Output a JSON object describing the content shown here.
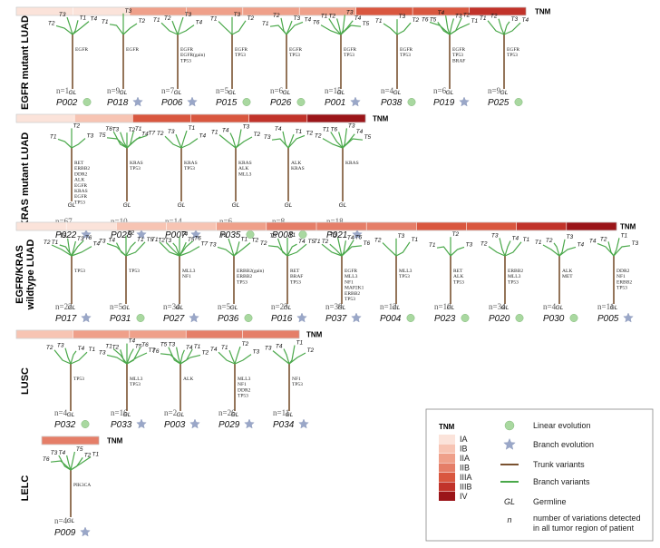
{
  "colors": {
    "stages": [
      "#fbe3da",
      "#f7c4b3",
      "#efa08a",
      "#e57e68",
      "#d9573f",
      "#c1332a",
      "#9b1519"
    ],
    "trunk": "#7a5230",
    "branch": "#4aa84a",
    "linear_fill": "#a9d8a0",
    "star_fill": "#9aa7c8"
  },
  "tnm_label": "TNM",
  "groups": [
    {
      "label": "EGFR mutant LUAD",
      "tnm_stages": [
        0,
        0,
        2,
        2,
        2,
        2,
        4,
        4,
        5
      ]
    },
    {
      "label": "KRAS mutant LUAD",
      "tnm_stages": [
        0,
        1,
        4,
        4,
        5,
        6
      ]
    },
    {
      "label": "EGFR/KRAS wildtype LUAD",
      "tnm_stages": [
        0,
        0,
        1,
        1,
        2,
        3,
        3,
        3,
        4,
        4,
        5,
        6
      ]
    },
    {
      "label": "LUSC",
      "tnm_stages": [
        1,
        2,
        2,
        3,
        3
      ]
    },
    {
      "label": "LELC",
      "tnm_stages": [
        3
      ]
    }
  ],
  "patients": [
    {
      "id": "P002",
      "n": "n=1",
      "evo": "linear",
      "genes": [
        "EGFR"
      ],
      "tips": [
        "T2",
        "T3",
        "T1",
        "T4"
      ]
    },
    {
      "id": "P018",
      "n": "n=9",
      "evo": "branch",
      "genes": [
        "EGFR"
      ],
      "tips": [
        "T1",
        "T3",
        "T2"
      ]
    },
    {
      "id": "P006",
      "n": "n=7",
      "evo": "branch",
      "genes": [
        "EGFR",
        "EGFR(gain)",
        "TP53"
      ],
      "tips": [
        "T1",
        "T2",
        "T3",
        "T4"
      ]
    },
    {
      "id": "P015",
      "n": "n=5",
      "evo": "linear",
      "genes": [
        "EGFR",
        "TP53"
      ],
      "tips": [
        "T1",
        "T3",
        "T2"
      ]
    },
    {
      "id": "P026",
      "n": "n=6",
      "evo": "linear",
      "genes": [
        "EGFR",
        "TP53"
      ],
      "tips": [
        "T1",
        "T2",
        "T3",
        "T4"
      ]
    },
    {
      "id": "P001",
      "n": "n=15",
      "evo": "branch",
      "genes": [
        "EGFR",
        "TP53"
      ],
      "tips": [
        "T6",
        "T1",
        "T2",
        "T3",
        "T4",
        "T5"
      ]
    },
    {
      "id": "P038",
      "n": "n=4",
      "evo": "linear",
      "genes": [
        "EGFR",
        "TP53"
      ],
      "tips": [
        "T1",
        "T3",
        "T2"
      ]
    },
    {
      "id": "P019",
      "n": "n=6",
      "evo": "branch",
      "genes": [
        "EGFR",
        "TP53",
        "BRAF"
      ],
      "tips": [
        "T6",
        "T5",
        "T4",
        "T3",
        "T2",
        "T1"
      ]
    },
    {
      "id": "P025",
      "n": "n=9",
      "evo": "linear",
      "genes": [
        "EGFR",
        "TP53"
      ],
      "tips": [
        "T1",
        "T2",
        "T3",
        "T4"
      ]
    },
    {
      "id": "P022",
      "n": "n=67",
      "evo": "branch",
      "genes": [
        "RET",
        "ERBB2",
        "DDR2",
        "ALK",
        "EGFR",
        "KRAS",
        "EGFR",
        "TP53"
      ],
      "tips": [
        "T1",
        "T2",
        "T3"
      ]
    },
    {
      "id": "P028",
      "n": "n=10",
      "evo": "branch",
      "genes": [
        "KRAS",
        "TP53"
      ],
      "tips": [
        "T5",
        "T6",
        "T3",
        "T2",
        "T1",
        "T4",
        "T7"
      ]
    },
    {
      "id": "P007",
      "n": "n=14",
      "evo": "branch",
      "genes": [
        "KRAS",
        "TP53"
      ],
      "tips": [
        "T2",
        "T3",
        "T1",
        "T4"
      ]
    },
    {
      "id": "P035",
      "n": "n=6",
      "evo": "linear",
      "genes": [
        "KRAS",
        "ALK",
        "MLL3"
      ],
      "tips": [
        "T1",
        "T4",
        "T3",
        "T2"
      ]
    },
    {
      "id": "P008",
      "n": "n=8",
      "evo": "linear",
      "genes": [
        "ALK",
        "KRAS"
      ],
      "tips": [
        "T3",
        "T4",
        "T1",
        "T2"
      ]
    },
    {
      "id": "P021",
      "n": "n=18",
      "evo": "branch",
      "genes": [
        "KRAS"
      ],
      "tips": [
        "T2",
        "T1",
        "T6",
        "T3",
        "T4",
        "T5"
      ]
    },
    {
      "id": "P017",
      "n": "n=22",
      "evo": "branch",
      "genes": [
        "TP53"
      ],
      "tips": [
        "T2",
        "T1",
        "T5",
        "T3",
        "T6",
        "T4"
      ]
    },
    {
      "id": "P031",
      "n": "n=5",
      "evo": "linear",
      "genes": [
        "TP53"
      ],
      "tips": [
        "T3",
        "T4",
        "T2",
        "T1",
        "T5"
      ]
    },
    {
      "id": "P027",
      "n": "n=34",
      "evo": "branch",
      "genes": [
        "MLL3",
        "NF1"
      ],
      "tips": [
        "T1",
        "T2",
        "T3",
        "T4",
        "T5",
        "T6",
        "T7"
      ]
    },
    {
      "id": "P036",
      "n": "n=5",
      "evo": "linear",
      "genes": [
        "ERBB2(gain)",
        "ERBB2",
        "TP53"
      ],
      "tips": [
        "T3",
        "T4",
        "T1",
        "T2"
      ]
    },
    {
      "id": "P016",
      "n": "n=23",
      "evo": "branch",
      "genes": [
        "RET",
        "BRAF",
        "TP53"
      ],
      "tips": [
        "T2",
        "T3",
        "T1",
        "T4",
        "T5"
      ]
    },
    {
      "id": "P037",
      "n": "n=39",
      "evo": "branch",
      "genes": [
        "EGFR",
        "MLL3",
        "NF1",
        "MAP2K1",
        "ERBB2",
        "TP53"
      ],
      "tips": [
        "T1",
        "T2",
        "T3",
        "T4",
        "T5",
        "T6"
      ]
    },
    {
      "id": "P004",
      "n": "n=12",
      "evo": "linear",
      "genes": [
        "MLL3",
        "TP53"
      ],
      "tips": [
        "T2",
        "T3",
        "T1"
      ]
    },
    {
      "id": "P023",
      "n": "n=10",
      "evo": "linear",
      "genes": [
        "RET",
        "ALK",
        "TP53"
      ],
      "tips": [
        "T1",
        "T2",
        "T3"
      ]
    },
    {
      "id": "P020",
      "n": "n=34",
      "evo": "linear",
      "genes": [
        "ERBB2",
        "MLL3",
        "TP53"
      ],
      "tips": [
        "T2",
        "T3",
        "T4",
        "T1"
      ]
    },
    {
      "id": "P030",
      "n": "n=4",
      "evo": "linear",
      "genes": [
        "ALK",
        "MET"
      ],
      "tips": [
        "T1",
        "T2",
        "T3",
        "T4"
      ]
    },
    {
      "id": "P005",
      "n": "n=11",
      "evo": "branch",
      "genes": [
        "DDR2",
        "NF1",
        "ERBB2",
        "TP53"
      ],
      "tips": [
        "T4",
        "T2",
        "T1",
        "T3"
      ]
    },
    {
      "id": "P032",
      "n": "n=4",
      "evo": "linear",
      "genes": [
        "TP53"
      ],
      "tips": [
        "T2",
        "T3",
        "T4",
        "T1"
      ]
    },
    {
      "id": "P033",
      "n": "n=16",
      "evo": "branch",
      "genes": [
        "MLL3",
        "TP53"
      ],
      "tips": [
        "T3",
        "T1",
        "T2",
        "T4",
        "T5",
        "T6",
        "T7"
      ]
    },
    {
      "id": "P003",
      "n": "n=2",
      "evo": "branch",
      "genes": [
        "ALK"
      ],
      "tips": [
        "T6",
        "T5",
        "T3",
        "T4",
        "T1",
        "T2"
      ]
    },
    {
      "id": "P029",
      "n": "n=26",
      "evo": "branch",
      "genes": [
        "MLL3",
        "NF1",
        "DDR2",
        "TP53"
      ],
      "tips": [
        "T4",
        "T1",
        "T2",
        "T3"
      ]
    },
    {
      "id": "P034",
      "n": "n=11",
      "evo": "branch",
      "genes": [
        "NF1",
        "TP53"
      ],
      "tips": [
        "T3",
        "T4",
        "T1",
        "T2"
      ]
    },
    {
      "id": "P009",
      "n": "n=4",
      "evo": "branch",
      "genes": [
        "PIK3CA"
      ],
      "tips": [
        "T6",
        "T3",
        "T4",
        "T5",
        "T2",
        "T1"
      ]
    }
  ],
  "gl_label": "GL",
  "legend": {
    "tnm_title": "TNM",
    "stages": [
      "IA",
      "IB",
      "IIA",
      "IIB",
      "IIIA",
      "IIIB",
      "IV"
    ],
    "linear": "Linear evolution",
    "branch": "Branch evolution",
    "trunk": "Trunk variants",
    "branch_var": "Branch variants",
    "gl_symbol": "GL",
    "gl_text": "Germline",
    "n_symbol": "n",
    "n_text_1": "number of variations detected",
    "n_text_2": "in all tumor region of patient"
  }
}
